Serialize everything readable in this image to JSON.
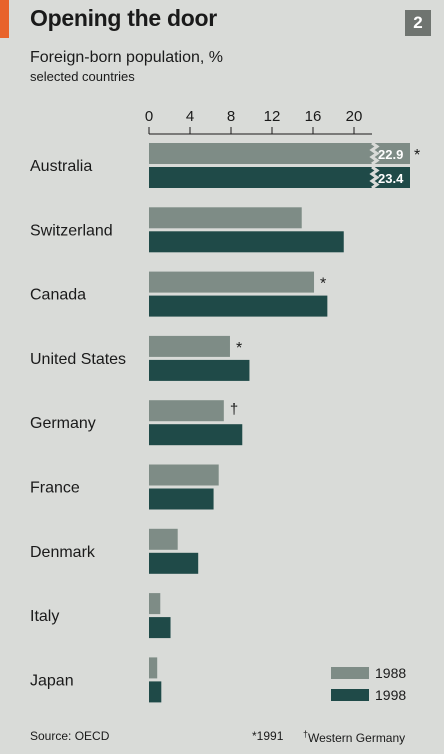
{
  "title": "Opening the door",
  "badge": "2",
  "subtitle": "Foreign-born population, %",
  "subtitle2": "selected countries",
  "source": "Source: OECD",
  "footnote_1991": "*1991",
  "footnote_germany_mark": "†",
  "footnote_germany": "Western Germany",
  "colors": {
    "s1988": "#7e8c86",
    "s1998": "#1f4a48",
    "background": "#d9dbd8",
    "accent": "#e8632b"
  },
  "chart_data": {
    "type": "bar",
    "orientation": "horizontal",
    "xticks": [
      "0",
      "4",
      "8",
      "12",
      "16",
      "20"
    ],
    "xlim": [
      0,
      24
    ],
    "axis_break": true,
    "categories": [
      "Australia",
      "Switzerland",
      "Canada",
      "United States",
      "Germany",
      "France",
      "Denmark",
      "Italy",
      "Japan"
    ],
    "series": [
      {
        "name": "1988",
        "values": [
          22.9,
          14.9,
          16.1,
          7.9,
          7.3,
          6.8,
          2.8,
          1.1,
          0.8
        ]
      },
      {
        "name": "1998",
        "values": [
          23.4,
          19.0,
          17.4,
          9.8,
          9.1,
          6.3,
          4.8,
          2.1,
          1.2
        ]
      }
    ],
    "bar_labels": [
      {
        "category": "Australia",
        "series": "1988",
        "text": "22.9"
      },
      {
        "category": "Australia",
        "series": "1998",
        "text": "23.4"
      }
    ],
    "markers": [
      {
        "category": "Australia",
        "series": "1988",
        "text": "*"
      },
      {
        "category": "Canada",
        "series": "1988",
        "text": "*"
      },
      {
        "category": "United States",
        "series": "1988",
        "text": "*"
      },
      {
        "category": "Germany",
        "series": "1988",
        "text": "†"
      }
    ],
    "legend": "bottom-right"
  }
}
